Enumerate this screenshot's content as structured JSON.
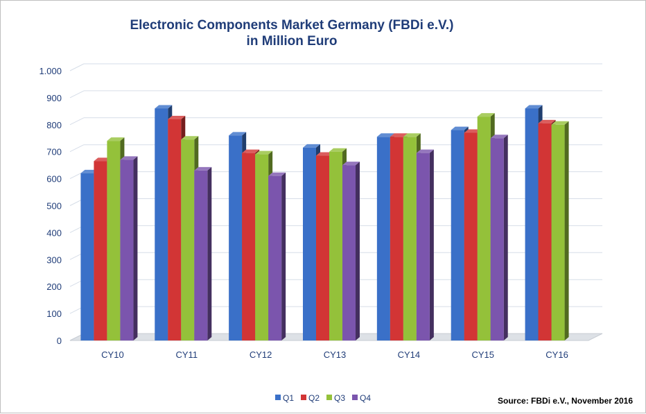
{
  "chart_data": {
    "type": "bar",
    "title_lines": [
      "Electronic Components Market Germany (FBDi e.V.)",
      "in Million Euro"
    ],
    "xlabel": "",
    "ylabel": "",
    "categories": [
      "CY10",
      "CY11",
      "CY12",
      "CY13",
      "CY14",
      "CY15",
      "CY16"
    ],
    "ylim": [
      0,
      1000
    ],
    "yticks": [
      0,
      100,
      200,
      300,
      400,
      500,
      600,
      700,
      800,
      900,
      1000
    ],
    "ytick_labels": [
      "0",
      "100",
      "200",
      "300",
      "400",
      "500",
      "600",
      "700",
      "800",
      "900",
      "1.000"
    ],
    "grid": true,
    "legend_position": "bottom",
    "series": [
      {
        "name": "Q1",
        "color": "#3a70c8",
        "values": [
          620,
          860,
          760,
          715,
          755,
          780,
          860
        ]
      },
      {
        "name": "Q2",
        "color": "#d23535",
        "values": [
          665,
          820,
          695,
          685,
          755,
          770,
          805
        ]
      },
      {
        "name": "Q3",
        "color": "#94c13a",
        "values": [
          740,
          745,
          690,
          700,
          755,
          830,
          800
        ]
      },
      {
        "name": "Q4",
        "color": "#7b55ad",
        "values": [
          670,
          630,
          610,
          650,
          695,
          750,
          null
        ]
      }
    ],
    "annotations": [
      "Source: FBDi e.V., November 2016"
    ]
  }
}
